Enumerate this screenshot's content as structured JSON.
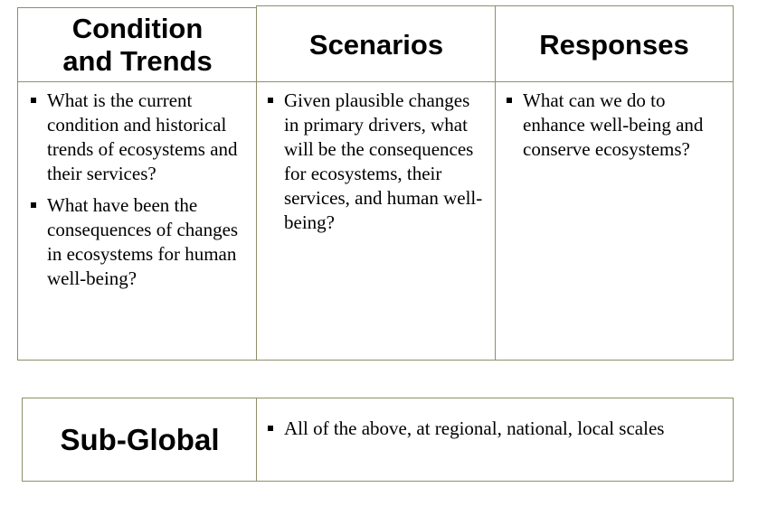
{
  "headers": {
    "condition": "Condition\nand Trends",
    "scenarios": "Scenarios",
    "responses": "Responses"
  },
  "columns": {
    "condition": [
      "What is the current condition and historical trends of ecosystems and their services?",
      "What have been the consequences of changes in ecosystems for human well-being?"
    ],
    "scenarios": [
      "Given plausible changes in primary drivers, what will be the consequences for ecosystems, their services, and human well-being?"
    ],
    "responses": [
      "What can we do to enhance well-being and conserve ecosystems?"
    ]
  },
  "subglobal": {
    "label": "Sub-Global",
    "items": [
      "All of the above, at regional, national, local scales"
    ]
  },
  "colors": {
    "border": "#8f8f6a",
    "text": "#000000",
    "background": "#ffffff"
  }
}
